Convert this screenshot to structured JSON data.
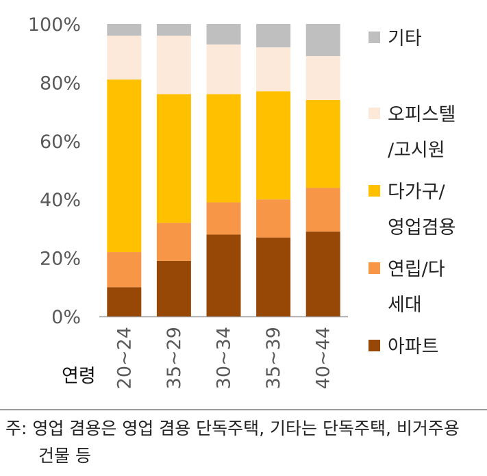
{
  "chart_data": {
    "type": "bar",
    "stacked": true,
    "percent": true,
    "categories": [
      "20~24",
      "35~29",
      "30~34",
      "35~39",
      "40~44"
    ],
    "xlabel": "연령",
    "ylim": [
      0,
      100
    ],
    "yticks": [
      "0%",
      "20%",
      "40%",
      "60%",
      "80%",
      "100%"
    ],
    "ytick_values": [
      0,
      20,
      40,
      60,
      80,
      100
    ],
    "legend_position": "right",
    "series": [
      {
        "name": "아파트",
        "values": [
          10,
          19,
          28,
          27,
          29
        ],
        "color": "#974806"
      },
      {
        "name": "연립/다세대",
        "values": [
          12,
          13,
          11,
          13,
          15
        ],
        "color": "#F79646"
      },
      {
        "name": "다가구/영업겸용",
        "values": [
          59,
          44,
          37,
          37,
          30
        ],
        "color": "#FFC000"
      },
      {
        "name": "오피스텔/고시원",
        "values": [
          15,
          20,
          17,
          15,
          15
        ],
        "color": "#FDE9D9"
      },
      {
        "name": "기타",
        "values": [
          4,
          4,
          7,
          8,
          11
        ],
        "color": "#BFBFBF"
      }
    ]
  },
  "legend": [
    {
      "lines": [
        "기타"
      ],
      "color": "#BFBFBF"
    },
    {
      "lines": [
        "오피스텔",
        "/고시원"
      ],
      "color": "#FDE9D9"
    },
    {
      "lines": [
        "다가구/",
        "영업겸용"
      ],
      "color": "#FFC000"
    },
    {
      "lines": [
        "연립/다",
        "세대"
      ],
      "color": "#F79646"
    },
    {
      "lines": [
        "아파트"
      ],
      "color": "#974806"
    }
  ],
  "note": {
    "line1": "주: 영업 겸용은 영업 겸용 단독주택, 기타는 단독주택, 비거주용",
    "line2": "건물 등"
  }
}
